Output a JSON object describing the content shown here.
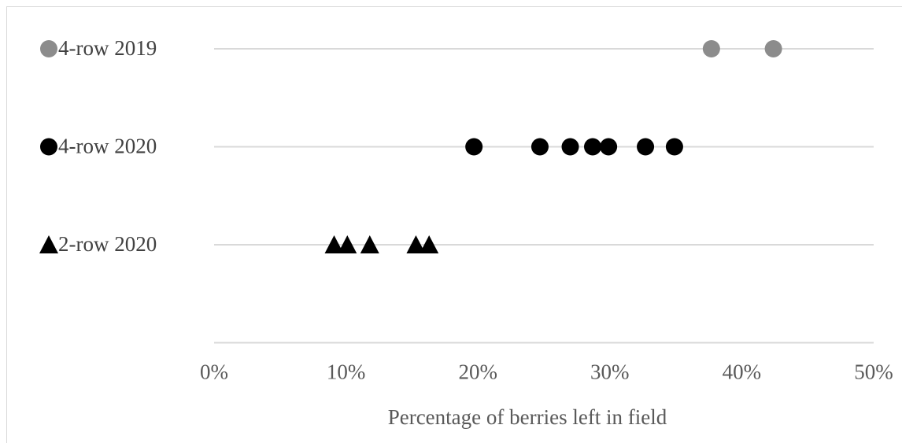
{
  "chart_data": {
    "type": "scatter",
    "x_label": "Percentage of berries left in field",
    "xlim": [
      0,
      50
    ],
    "xticks": [
      {
        "value": 0,
        "label": "0%"
      },
      {
        "value": 10,
        "label": "10%"
      },
      {
        "value": 20,
        "label": "20%"
      },
      {
        "value": 30,
        "label": "30%"
      },
      {
        "value": 40,
        "label": "40%"
      },
      {
        "value": 50,
        "label": "50%"
      }
    ],
    "series": [
      {
        "name": "4-row 2019",
        "color": "#8c8c8c",
        "marker": "circle",
        "values": [
          37.7,
          42.4
        ]
      },
      {
        "name": "4-row 2020",
        "color": "#000000",
        "marker": "circle",
        "values": [
          19.7,
          24.7,
          27.0,
          28.7,
          29.9,
          32.7,
          34.9
        ]
      },
      {
        "name": "2-row 2020",
        "color": "#000000",
        "marker": "triangle",
        "values": [
          9.1,
          10.1,
          11.8,
          15.3,
          16.3
        ]
      }
    ]
  }
}
